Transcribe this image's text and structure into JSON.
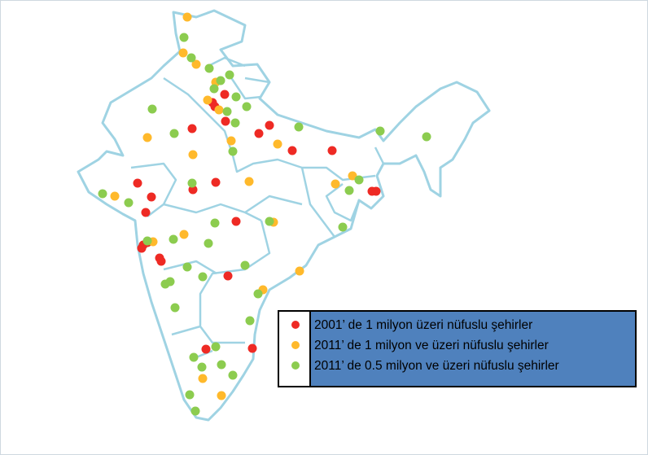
{
  "legend": {
    "items": [
      {
        "label": "2001’ de 1 milyon üzeri nüfuslu şehirler",
        "color": "#ee2a24"
      },
      {
        "label": "2011’ de 1 milyon  ve üzeri nüfuslu şehirler",
        "color": "#ffb92b"
      },
      {
        "label": "2011’ de 0.5 milyon ve üzeri nüfuslu şehirler",
        "color": "#8ccc4f"
      }
    ]
  }
}
